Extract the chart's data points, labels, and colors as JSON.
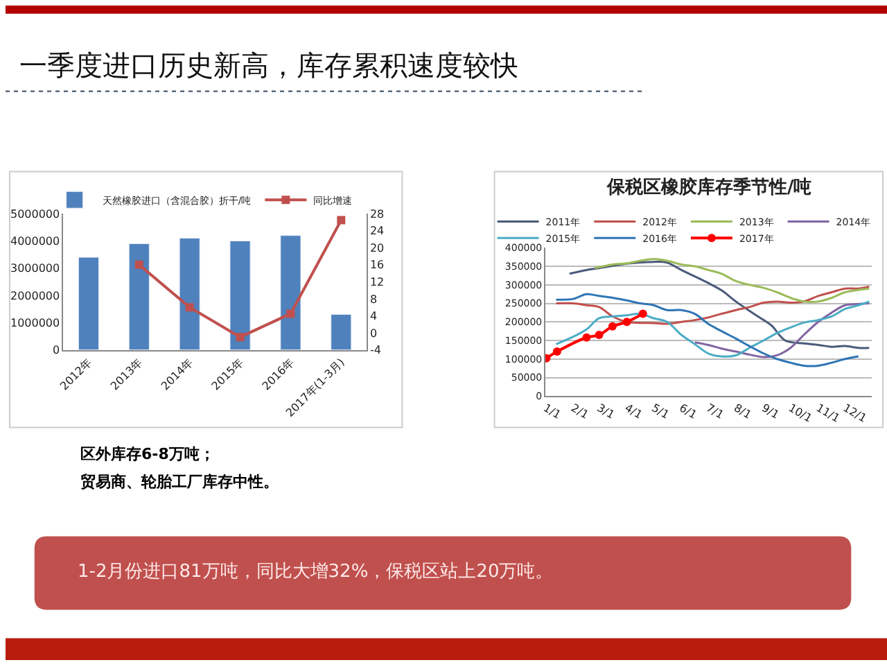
{
  "chart_data": [
    {
      "type": "other",
      "title": "一季度进口历史新高，库存累积速度较快",
      "annotations": [
        "区外库存6-8万吨；",
        "贸易商、轮胎工厂库存中性。",
        "1-2月份进口81万吨，同比大增32%，保税区站上20万吨。"
      ]
    },
    {
      "type": "bar",
      "categories": [
        "2012年",
        "2013年",
        "2014年",
        "2015年",
        "2016年",
        "2017年(1-3月)"
      ],
      "series": [
        {
          "name": "天然橡胶进口（含混合胶）折干/吨",
          "color": "#4f81bd",
          "values": [
            3400000,
            3900000,
            4100000,
            4000000,
            4200000,
            1300000
          ]
        },
        {
          "name": "同比增速",
          "type": "line",
          "axis": "y2",
          "marker": "square",
          "color": "#c0504d",
          "values": [
            null,
            16,
            6,
            -1,
            4.5,
            26.5
          ]
        }
      ],
      "ylim": [
        0,
        5000000
      ],
      "yticks": [
        0,
        1000000,
        2000000,
        3000000,
        4000000,
        5000000
      ],
      "y2lim": [
        -4,
        28
      ],
      "y2ticks": [
        -4,
        0,
        4,
        8,
        12,
        16,
        20,
        24,
        28
      ],
      "legend": "top"
    },
    {
      "type": "line",
      "title": "保税区橡胶库存季节性/吨",
      "marker": "none",
      "grid": "y",
      "legend": "top",
      "xlim": [
        "--01-01",
        "--12-31"
      ],
      "xticks": [
        {
          "value": "--01-01",
          "label": "1/1"
        },
        {
          "value": "--02-01",
          "label": "2/1"
        },
        {
          "value": "--03-01",
          "label": "3/1"
        },
        {
          "value": "--04-01",
          "label": "4/1"
        },
        {
          "value": "--05-01",
          "label": "5/1"
        },
        {
          "value": "--06-01",
          "label": "6/1"
        },
        {
          "value": "--07-01",
          "label": "7/1"
        },
        {
          "value": "--08-01",
          "label": "8/1"
        },
        {
          "value": "--09-01",
          "label": "9/1"
        },
        {
          "value": "--10-01",
          "label": "10/1"
        },
        {
          "value": "--11-01",
          "label": "11/1"
        },
        {
          "value": "--12-01",
          "label": "12/1"
        }
      ],
      "ylim": [
        0,
        400000
      ],
      "yticks": [
        0,
        50000,
        100000,
        150000,
        200000,
        250000,
        300000,
        350000,
        400000
      ],
      "series": [
        {
          "name": "2011年",
          "color": "#4a5a7a",
          "x": [
            "--01-28",
            "--02-16",
            "--03-01",
            "--04-01",
            "--05-01",
            "--05-16",
            "--06-01",
            "--07-01",
            "--07-16",
            "--08-01",
            "--08-16",
            "--09-01",
            "--09-10",
            "--09-25",
            "--10-16",
            "--11-01",
            "--11-16",
            "--12-01",
            "--12-16",
            "--12-28"
          ],
          "values": [
            330000,
            340000,
            345000,
            357000,
            362000,
            360000,
            340000,
            305000,
            285000,
            255000,
            230000,
            205000,
            190000,
            150000,
            142000,
            138000,
            133000,
            135000,
            130000,
            130000
          ]
        },
        {
          "name": "2012年",
          "color": "#c0504d",
          "x": [
            "--01-13",
            "--02-01",
            "--02-16",
            "--03-01",
            "--03-16",
            "--04-01",
            "--05-01",
            "--05-16",
            "--06-01",
            "--06-16",
            "--07-01",
            "--07-16",
            "--08-01",
            "--08-16",
            "--09-01",
            "--09-16",
            "--10-01",
            "--10-16",
            "--11-01",
            "--11-16",
            "--12-01",
            "--12-16",
            "--12-28"
          ],
          "values": [
            250000,
            250000,
            245000,
            240000,
            215000,
            200000,
            197000,
            195000,
            200000,
            205000,
            212000,
            222000,
            232000,
            240000,
            252000,
            255000,
            252000,
            255000,
            270000,
            280000,
            290000,
            290000,
            295000
          ]
        },
        {
          "name": "2013年",
          "color": "#9bbb59",
          "x": [
            "--02-25",
            "--03-16",
            "--04-01",
            "--04-16",
            "--05-01",
            "--05-16",
            "--06-01",
            "--06-16",
            "--07-01",
            "--07-16",
            "--08-01",
            "--08-16",
            "--09-01",
            "--09-16",
            "--10-01",
            "--10-16",
            "--11-01",
            "--11-16",
            "--12-01",
            "--12-28"
          ],
          "values": [
            345000,
            355000,
            358000,
            365000,
            370000,
            365000,
            355000,
            350000,
            340000,
            330000,
            310000,
            300000,
            292000,
            280000,
            265000,
            255000,
            255000,
            265000,
            280000,
            290000
          ]
        },
        {
          "name": "2014年",
          "color": "#8064a2",
          "x": [
            "--06-16",
            "--07-01",
            "--07-16",
            "--08-01",
            "--08-16",
            "--09-01",
            "--09-16",
            "--10-01",
            "--10-16",
            "--11-01",
            "--11-16",
            "--12-01",
            "--12-16",
            "--12-28"
          ],
          "values": [
            145000,
            138000,
            128000,
            120000,
            112000,
            105000,
            110000,
            130000,
            165000,
            200000,
            225000,
            245000,
            248000,
            250000
          ]
        },
        {
          "name": "2015年",
          "color": "#4bacc6",
          "x": [
            "--01-13",
            "--02-01",
            "--02-16",
            "--03-01",
            "--03-16",
            "--04-01",
            "--04-16",
            "--05-01",
            "--05-16",
            "--06-01",
            "--06-16",
            "--07-01",
            "--07-16",
            "--08-01",
            "--08-16",
            "--09-01",
            "--09-16",
            "--10-01",
            "--10-16",
            "--11-01",
            "--11-16",
            "--12-01",
            "--12-16",
            "--12-28"
          ],
          "values": [
            140000,
            160000,
            180000,
            210000,
            215000,
            218000,
            222000,
            210000,
            200000,
            165000,
            140000,
            115000,
            107000,
            110000,
            130000,
            150000,
            170000,
            185000,
            198000,
            205000,
            215000,
            235000,
            245000,
            255000
          ]
        },
        {
          "name": "2016年",
          "color": "#2e75b6",
          "x": [
            "--01-13",
            "--02-01",
            "--02-16",
            "--03-01",
            "--03-16",
            "--04-01",
            "--04-16",
            "--05-01",
            "--05-16",
            "--06-01",
            "--06-16",
            "--07-01",
            "--07-16",
            "--08-01",
            "--08-16",
            "--09-01",
            "--09-16",
            "--10-01",
            "--10-16",
            "--11-01",
            "--11-16",
            "--12-01",
            "--12-16"
          ],
          "values": [
            260000,
            262000,
            275000,
            270000,
            265000,
            258000,
            250000,
            245000,
            232000,
            232000,
            222000,
            195000,
            175000,
            155000,
            135000,
            115000,
            100000,
            90000,
            82000,
            82000,
            90000,
            100000,
            107000
          ]
        },
        {
          "name": "2017年",
          "color": "#ff0000",
          "marker": "circle",
          "x": [
            "--01-02",
            "--01-14",
            "--02-16",
            "--03-01",
            "--03-16",
            "--04-01",
            "--04-19"
          ],
          "values": [
            102000,
            120000,
            158000,
            165000,
            188000,
            200000,
            222000
          ]
        }
      ]
    }
  ]
}
